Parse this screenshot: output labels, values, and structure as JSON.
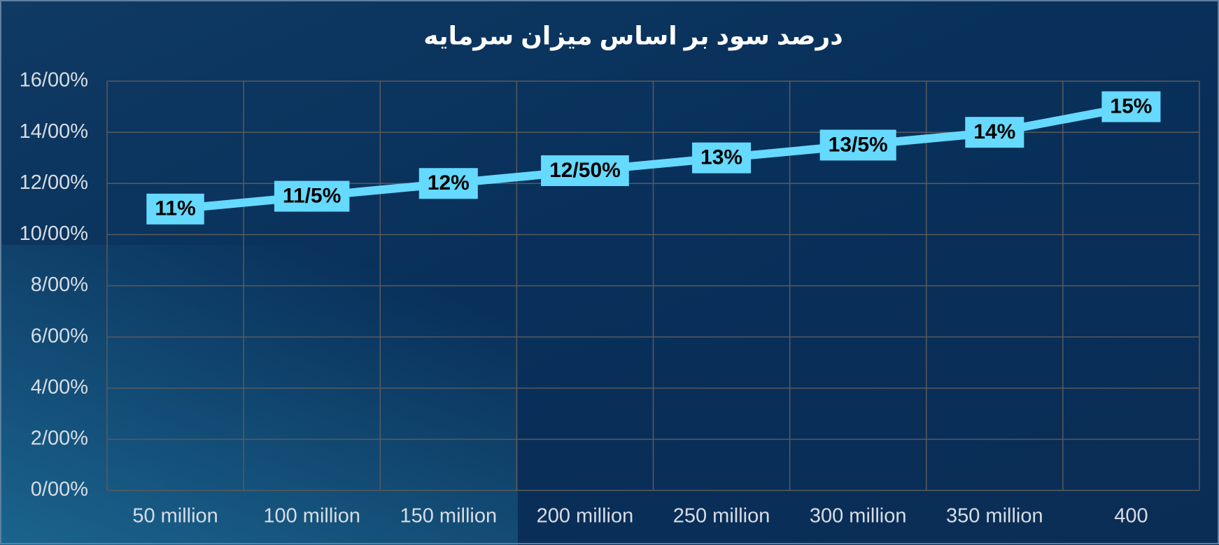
{
  "chart_data": {
    "type": "line",
    "title": "درصد سود بر اساس میزان سرمایه",
    "categories": [
      "50 million",
      "100 million",
      "150 million",
      "200 million",
      "250 million",
      "300 million",
      "350 million",
      "400"
    ],
    "values": [
      11,
      11.5,
      12,
      12.5,
      13,
      13.5,
      14,
      15
    ],
    "value_labels": [
      "11%",
      "11/5%",
      "12%",
      "12/50%",
      "13%",
      "13/5%",
      "14%",
      "15%"
    ],
    "color": "#66d9ff",
    "ylim": [
      0,
      16
    ],
    "yticks": [
      {
        "value": 0,
        "label": "0/00%"
      },
      {
        "value": 2,
        "label": "2/00%"
      },
      {
        "value": 4,
        "label": "4/00%"
      },
      {
        "value": 6,
        "label": "6/00%"
      },
      {
        "value": 8,
        "label": "8/00%"
      },
      {
        "value": 10,
        "label": "10/00%"
      },
      {
        "value": 12,
        "label": "12/00%"
      },
      {
        "value": 14,
        "label": "14/00%"
      },
      {
        "value": 16,
        "label": "16/00%"
      }
    ],
    "grid": true
  }
}
